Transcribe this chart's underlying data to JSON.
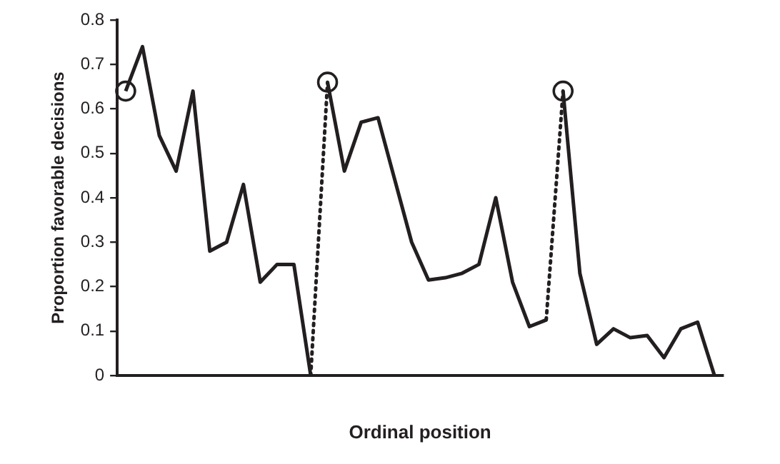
{
  "chart_data": {
    "type": "line",
    "xlabel": "Ordinal position",
    "ylabel": "Proportion favorable decisions",
    "categories": [
      null,
      null,
      null,
      null,
      null,
      null,
      null,
      null,
      null,
      null,
      null,
      null,
      null,
      null,
      null,
      null,
      null,
      null,
      null,
      null,
      null,
      null,
      null,
      null,
      null,
      null,
      null,
      null,
      null,
      null,
      null,
      null,
      null,
      null,
      null,
      null
    ],
    "ylim": [
      0,
      0.8
    ],
    "yticks": [
      0,
      0.1,
      0.2,
      0.3,
      0.4,
      0.5,
      0.6,
      0.7,
      0.8
    ],
    "grid": false,
    "legend": false,
    "series": [
      {
        "color": "#231f20",
        "line_style": "solid",
        "marker": "none",
        "values": [
          0.64,
          0.74,
          0.54,
          0.46,
          0.64,
          0.28,
          0.3,
          0.43,
          0.21,
          0.25,
          0.25,
          0,
          0.66,
          0.46,
          0.57,
          0.58,
          0.44,
          0.3,
          0.215,
          0.22,
          0.23,
          0.25,
          0.4,
          0.21,
          0.11,
          0.125,
          0.64,
          0.23,
          0.07,
          0.105,
          0.085,
          0.09,
          0.04,
          0.105,
          0.12,
          0
        ]
      },
      {
        "type": "scatter",
        "color": "#231f20",
        "marker": "circle",
        "line_style": "dotted",
        "values": [
          0.64,
          null,
          null,
          null,
          null,
          null,
          null,
          null,
          null,
          null,
          null,
          null,
          0.66,
          null,
          null,
          null,
          null,
          null,
          null,
          null,
          null,
          null,
          null,
          null,
          null,
          null,
          0.64,
          null,
          null,
          null,
          null,
          null,
          null,
          null,
          null,
          null
        ]
      }
    ]
  }
}
